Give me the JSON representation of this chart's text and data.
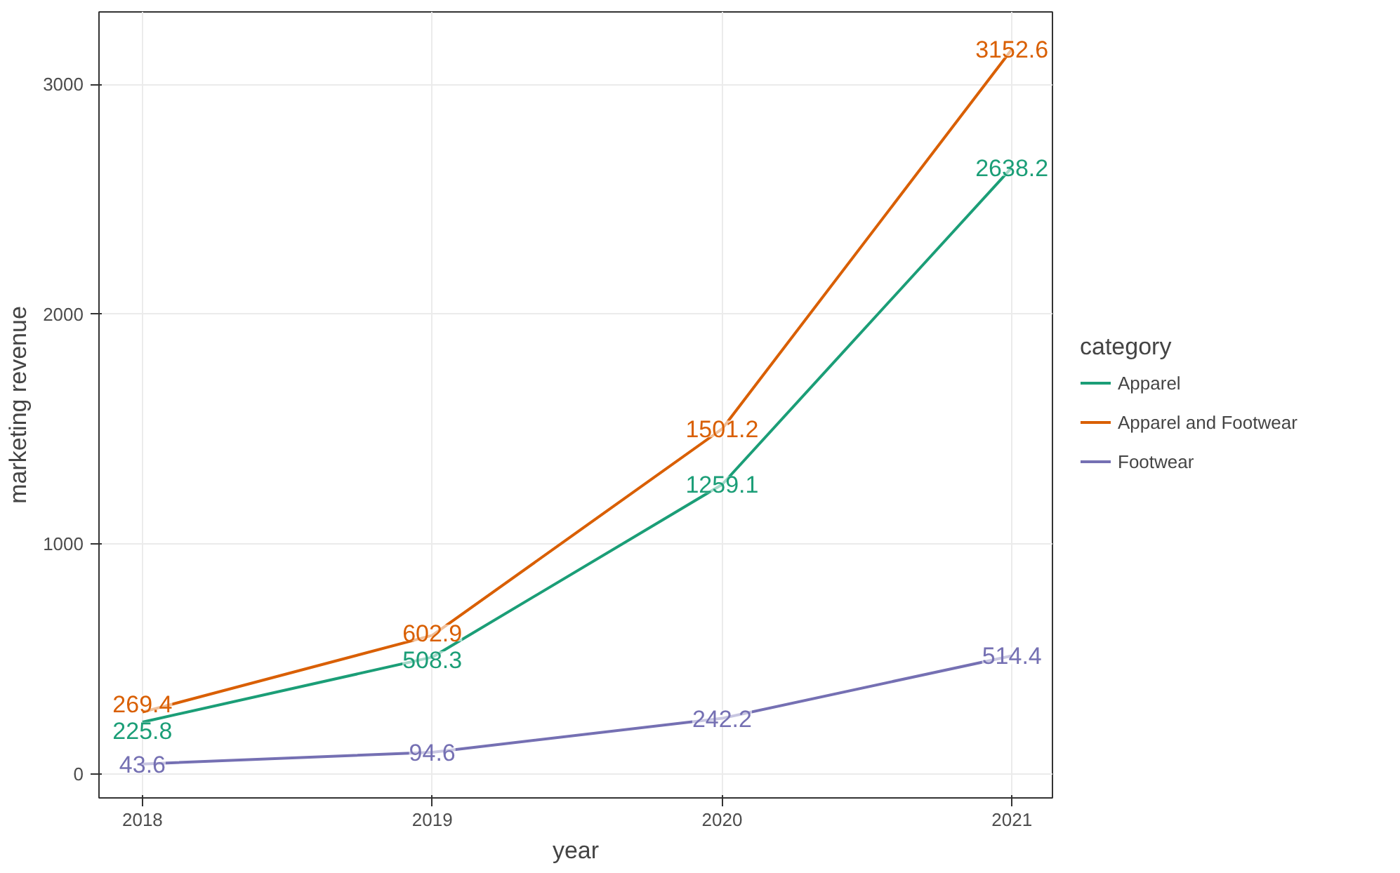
{
  "chart_data": {
    "type": "line",
    "xlabel": "year",
    "ylabel": "marketing revenue",
    "legend_title": "category",
    "x": [
      2018,
      2019,
      2020,
      2021
    ],
    "series": [
      {
        "name": "Apparel",
        "color": "#1b9e77",
        "values": [
          225.8,
          508.3,
          1259.1,
          2638.2
        ]
      },
      {
        "name": "Apparel and Footwear",
        "color": "#d95f02",
        "values": [
          269.4,
          602.9,
          1501.2,
          3152.6
        ]
      },
      {
        "name": "Footwear",
        "color": "#7570b3",
        "values": [
          43.6,
          94.6,
          242.2,
          514.4
        ]
      }
    ],
    "xlim": [
      2017.85,
      2021.14
    ],
    "ylim": [
      -104,
      3315
    ],
    "xticks": [
      2018,
      2019,
      2020,
      2021
    ],
    "yticks": [
      0,
      1000,
      2000,
      3000
    ],
    "grid": true,
    "legend": "right",
    "data_labels": true
  }
}
